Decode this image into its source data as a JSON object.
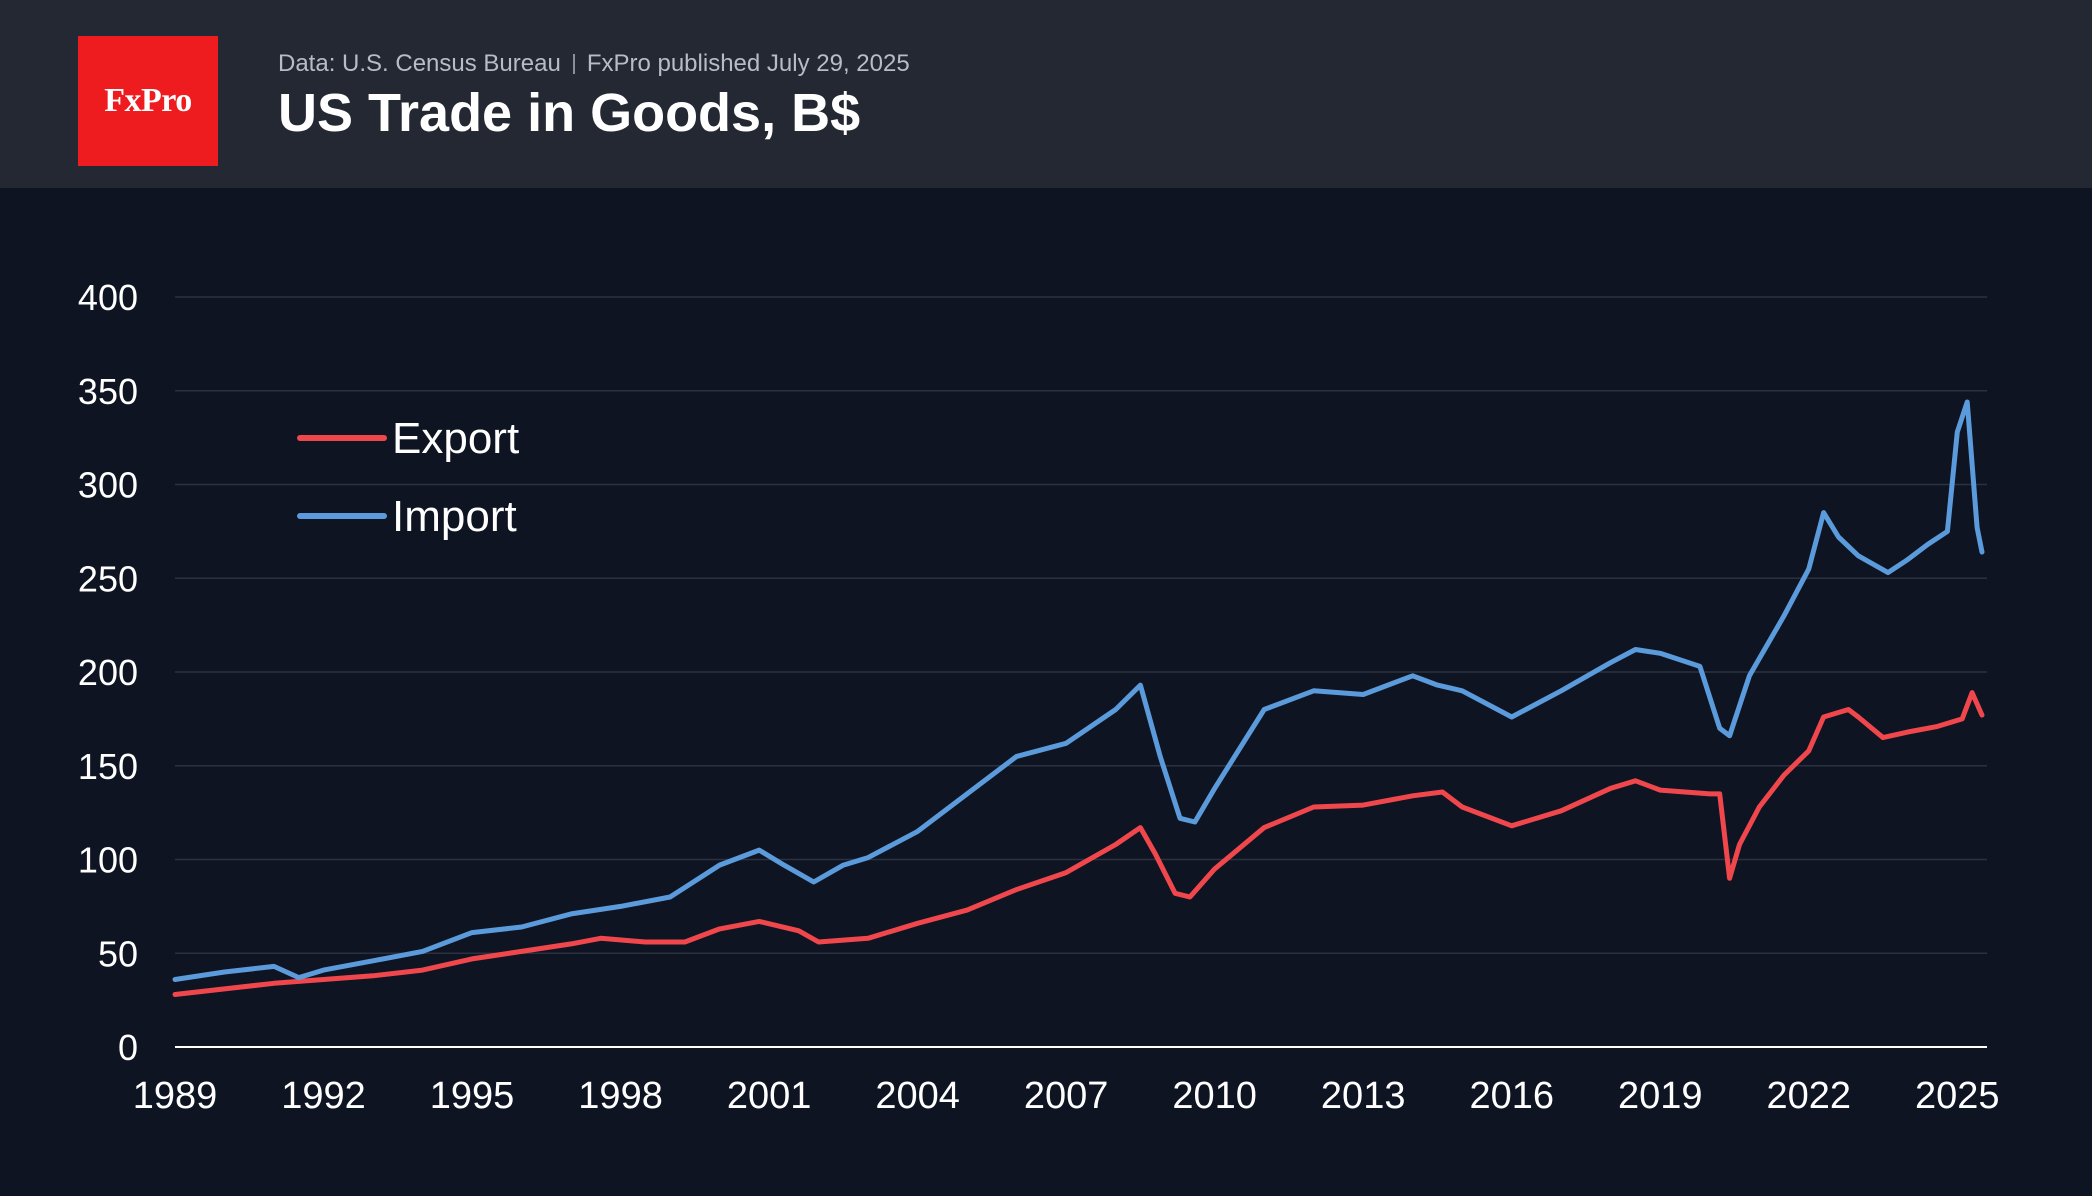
{
  "header": {
    "logo_text": "FxPro",
    "source": "Data: U.S. Census Bureau",
    "published": "FxPro published July 29, 2025",
    "title": "US Trade in Goods, B$"
  },
  "colors": {
    "background": "#0e1421",
    "header_background": "#242832",
    "logo_red": "#ee1c1e",
    "export": "#f0474d",
    "import": "#5b9bdc",
    "grid": "#2a3140",
    "axis_text": "#ffffff"
  },
  "chart_data": {
    "type": "line",
    "title": "US Trade in Goods, B$",
    "ylim": [
      0,
      400
    ],
    "yticks": [
      0,
      50,
      100,
      150,
      200,
      250,
      300,
      350,
      400
    ],
    "xlim": [
      1989,
      2025.6
    ],
    "xticks": [
      1989,
      1992,
      1995,
      1998,
      2001,
      2004,
      2007,
      2010,
      2013,
      2016,
      2019,
      2022,
      2025
    ],
    "grid": "horizontal",
    "legend_position": "top-left",
    "series": [
      {
        "name": "Export",
        "color": "#f0474d",
        "x": [
          1989.0,
          1990.0,
          1991.0,
          1992.0,
          1993.0,
          1994.0,
          1995.0,
          1996.0,
          1997.0,
          1997.6,
          1998.5,
          1999.3,
          2000.0,
          2000.8,
          2001.6,
          2002.0,
          2003.0,
          2004.0,
          2005.0,
          2006.0,
          2007.0,
          2008.0,
          2008.5,
          2008.8,
          2009.2,
          2009.5,
          2010.0,
          2011.0,
          2012.0,
          2013.0,
          2014.0,
          2014.6,
          2015.0,
          2016.0,
          2017.0,
          2018.0,
          2018.5,
          2019.0,
          2020.0,
          2020.2,
          2020.4,
          2020.6,
          2021.0,
          2021.5,
          2022.0,
          2022.3,
          2022.8,
          2023.0,
          2023.5,
          2024.0,
          2024.6,
          2025.1,
          2025.3,
          2025.5
        ],
        "values": [
          28,
          31,
          34,
          36,
          38,
          41,
          47,
          51,
          55,
          58,
          56,
          56,
          63,
          67,
          62,
          56,
          58,
          66,
          73,
          84,
          93,
          108,
          117,
          103,
          82,
          80,
          95,
          117,
          128,
          129,
          134,
          136,
          128,
          118,
          126,
          138,
          142,
          137,
          135,
          135,
          90,
          108,
          128,
          145,
          158,
          176,
          180,
          176,
          165,
          168,
          171,
          175,
          189,
          177
        ]
      },
      {
        "name": "Import",
        "color": "#5b9bdc",
        "x": [
          1989.0,
          1990.0,
          1991.0,
          1991.5,
          1992.0,
          1993.0,
          1994.0,
          1995.0,
          1996.0,
          1997.0,
          1998.0,
          1999.0,
          2000.0,
          2000.8,
          2001.3,
          2001.9,
          2002.5,
          2003.0,
          2004.0,
          2005.0,
          2006.0,
          2007.0,
          2008.0,
          2008.5,
          2008.9,
          2009.3,
          2009.6,
          2010.0,
          2011.0,
          2012.0,
          2013.0,
          2014.0,
          2014.5,
          2015.0,
          2016.0,
          2017.0,
          2018.0,
          2018.5,
          2019.0,
          2019.8,
          2020.2,
          2020.4,
          2020.8,
          2021.5,
          2022.0,
          2022.3,
          2022.6,
          2023.0,
          2023.6,
          2024.0,
          2024.4,
          2024.8,
          2025.0,
          2025.2,
          2025.4,
          2025.5
        ],
        "values": [
          36,
          40,
          43,
          37,
          41,
          46,
          51,
          61,
          64,
          71,
          75,
          80,
          97,
          105,
          97,
          88,
          97,
          101,
          115,
          135,
          155,
          162,
          180,
          193,
          155,
          122,
          120,
          138,
          180,
          190,
          188,
          198,
          193,
          190,
          176,
          190,
          205,
          212,
          210,
          203,
          170,
          166,
          198,
          230,
          255,
          285,
          272,
          262,
          253,
          260,
          268,
          275,
          328,
          344,
          277,
          264
        ]
      }
    ]
  }
}
